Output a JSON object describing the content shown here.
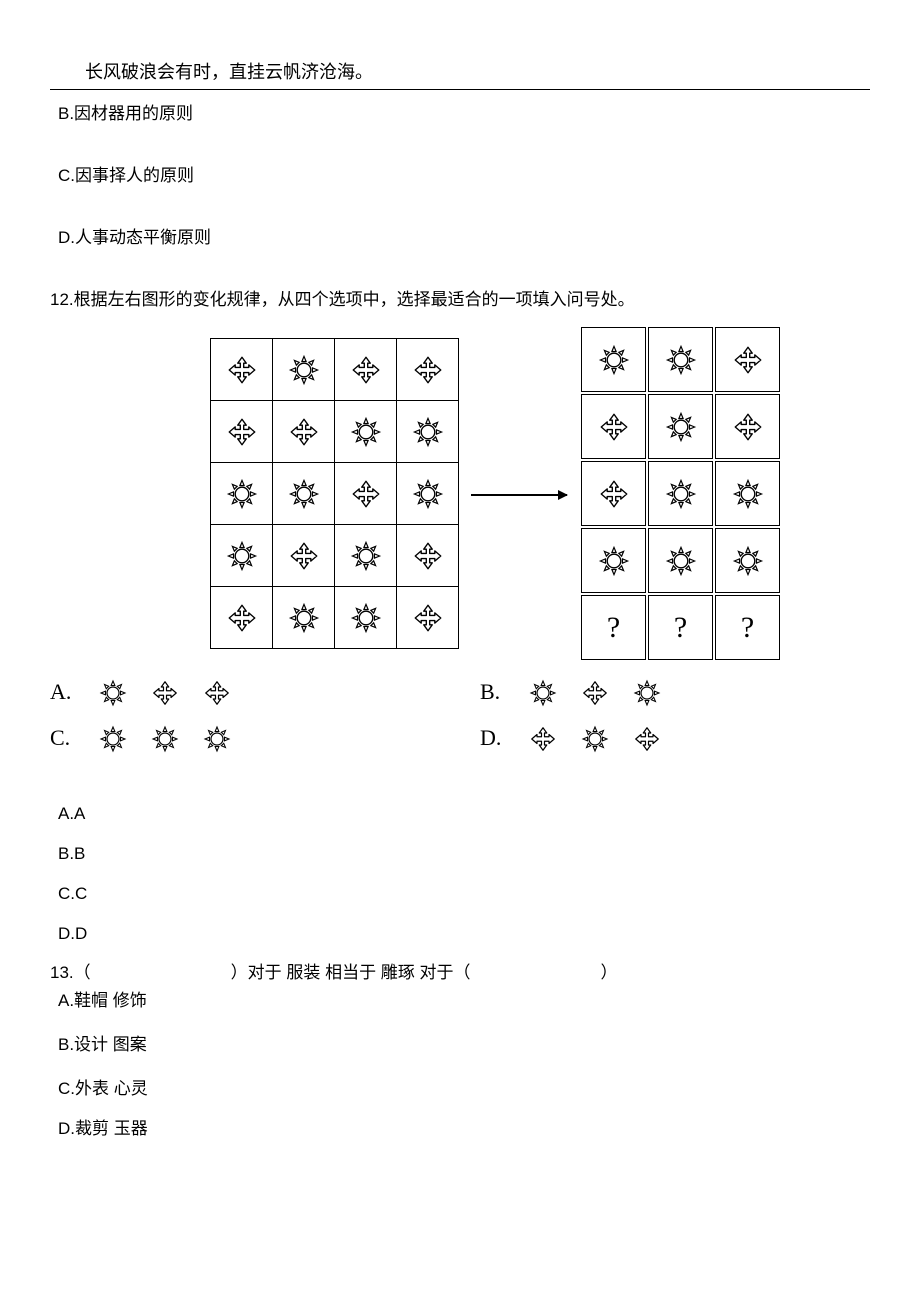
{
  "header_quote": "长风破浪会有时，直挂云帆济沧海。",
  "q11_options": {
    "b": "B.因材器用的原则",
    "c": "C.因事择人的原则",
    "d": "D.人事动态平衡原则"
  },
  "q12": {
    "stem": "12.根据左右图形的变化规律，从四个选项中，选择最适合的一项填入问号处。",
    "left_grid": [
      [
        "cross",
        "sun",
        "cross",
        "cross"
      ],
      [
        "cross",
        "cross",
        "sun",
        "sun"
      ],
      [
        "sun",
        "sun",
        "cross",
        "sun"
      ],
      [
        "sun",
        "cross",
        "sun",
        "cross"
      ],
      [
        "cross",
        "sun",
        "sun",
        "cross"
      ]
    ],
    "right_grid": [
      [
        "sun",
        "sun",
        "cross"
      ],
      [
        "cross",
        "sun",
        "cross"
      ],
      [
        "cross",
        "sun",
        "sun"
      ],
      [
        "sun",
        "sun",
        "sun"
      ],
      [
        "?",
        "?",
        "?"
      ]
    ],
    "answers": {
      "A": [
        "sun",
        "cross",
        "cross"
      ],
      "B": [
        "sun",
        "cross",
        "sun"
      ],
      "C": [
        "sun",
        "sun",
        "sun"
      ],
      "D": [
        "cross",
        "sun",
        "cross"
      ]
    },
    "labels": {
      "A": "A.",
      "B": "B.",
      "C": "C.",
      "D": "D."
    },
    "choice_labels": {
      "a": "A.A",
      "b": "B.B",
      "c": "C.C",
      "d": "D.D"
    }
  },
  "q13": {
    "num": "13.",
    "paren_open": "（",
    "paren_close": "）",
    "mid_1": " 对于 服装 相当于 雕琢 对于 ",
    "options": {
      "a": "A.鞋帽 修饰",
      "b": "B.设计 图案",
      "c": "C.外表 心灵",
      "d": "D.裁剪 玉器"
    }
  },
  "icon_size_grid": 34,
  "icon_size_inline": 30,
  "colors": {
    "stroke": "#000000",
    "bg": "#ffffff"
  }
}
